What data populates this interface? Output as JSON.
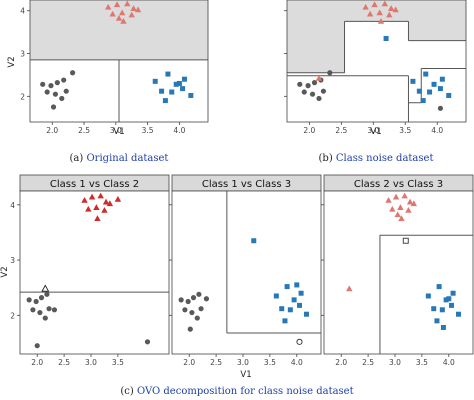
{
  "captions": {
    "a": {
      "prefix": "(a) ",
      "link": "Original dataset"
    },
    "b": {
      "prefix": "(b) ",
      "link": "Class noise dataset"
    },
    "c": {
      "prefix": "(c) ",
      "link": "OVO decomposition for class noise dataset"
    }
  },
  "colors": {
    "class1": "#595959",
    "class2": "#e0776f",
    "class2_strong": "#d02a2a",
    "class3": "#2878b5",
    "region_fill": "#dcdcdc",
    "strip_fill": "#d9d9d9"
  },
  "chart_data": [
    {
      "id": "a",
      "type": "scatter",
      "xlabel": "V1",
      "ylabel": "V2",
      "xlim": [
        1.65,
        4.45
      ],
      "ylim": [
        1.4,
        4.25
      ],
      "xticks": [
        2.0,
        2.5,
        3.0,
        3.5,
        4.0
      ],
      "xtick_labels": [
        "2.0",
        "2.5",
        "3.0",
        "3.5",
        "4.0"
      ],
      "yticks": [
        2,
        3,
        4
      ],
      "ytick_labels": [
        "2",
        "3",
        "4"
      ],
      "regions": [
        {
          "x0": 1.65,
          "x1": 4.45,
          "y0": 2.85,
          "y1": 4.25,
          "filled": true
        }
      ],
      "lines": [
        {
          "x0": 1.65,
          "x1": 4.45,
          "y0": 2.85,
          "y1": 2.85
        },
        {
          "x0": 3.05,
          "x1": 3.05,
          "y0": 1.4,
          "y1": 2.85
        }
      ],
      "series": [
        {
          "class": "class1",
          "shape": "circle",
          "x": [
            1.85,
            1.98,
            2.08,
            2.18,
            1.92,
            2.05,
            2.22,
            2.32,
            2.15,
            2.02
          ],
          "y": [
            2.28,
            2.25,
            2.32,
            2.38,
            2.1,
            2.05,
            2.12,
            2.55,
            1.95,
            1.75
          ]
        },
        {
          "class": "class2",
          "shape": "triangle",
          "x": [
            2.88,
            3.02,
            3.18,
            3.28,
            2.95,
            3.1,
            3.25,
            3.12,
            3.35,
            3.05
          ],
          "y": [
            4.08,
            4.14,
            4.16,
            4.05,
            3.92,
            3.95,
            3.9,
            3.75,
            4.02,
            3.82
          ]
        },
        {
          "class": "class3",
          "shape": "square",
          "x": [
            3.62,
            3.82,
            3.95,
            4.08,
            3.72,
            3.88,
            4.05,
            4.18,
            3.78,
            4.0
          ],
          "y": [
            2.35,
            2.52,
            2.28,
            2.4,
            2.12,
            2.1,
            2.18,
            2.02,
            1.9,
            2.3
          ]
        }
      ]
    },
    {
      "id": "b",
      "type": "scatter",
      "xlabel": "V1",
      "ylabel": "",
      "xlim": [
        1.65,
        4.45
      ],
      "ylim": [
        1.4,
        4.25
      ],
      "xticks": [
        2.0,
        2.5,
        3.0,
        3.5,
        4.0
      ],
      "xtick_labels": [
        "2.0",
        "2.5",
        "3.0",
        "3.5",
        "4.0"
      ],
      "yticks": [
        2,
        3,
        4
      ],
      "ytick_labels": [
        "",
        "",
        ""
      ],
      "regions": [
        {
          "x0": 1.65,
          "x1": 2.55,
          "y0": 2.55,
          "y1": 4.25,
          "filled": true
        },
        {
          "x0": 2.55,
          "x1": 3.55,
          "y0": 3.75,
          "y1": 4.25,
          "filled": true
        },
        {
          "x0": 3.55,
          "x1": 4.45,
          "y0": 3.3,
          "y1": 4.25,
          "filled": true
        }
      ],
      "lines": [
        {
          "x0": 1.65,
          "x1": 2.55,
          "y0": 2.55,
          "y1": 2.55
        },
        {
          "x0": 2.55,
          "x1": 2.55,
          "y0": 2.55,
          "y1": 3.75
        },
        {
          "x0": 2.55,
          "x1": 3.55,
          "y0": 3.75,
          "y1": 3.75
        },
        {
          "x0": 3.55,
          "x1": 3.55,
          "y0": 3.75,
          "y1": 3.3
        },
        {
          "x0": 3.55,
          "x1": 4.45,
          "y0": 3.3,
          "y1": 3.3
        },
        {
          "x0": 1.65,
          "x1": 3.55,
          "y0": 2.48,
          "y1": 2.48
        },
        {
          "x0": 3.55,
          "x1": 3.55,
          "y0": 2.48,
          "y1": 1.4
        },
        {
          "x0": 3.55,
          "x1": 3.75,
          "y0": 1.85,
          "y1": 1.85
        },
        {
          "x0": 3.75,
          "x1": 3.75,
          "y0": 1.85,
          "y1": 2.65
        },
        {
          "x0": 3.75,
          "x1": 4.45,
          "y0": 2.65,
          "y1": 2.65
        }
      ],
      "series": [
        {
          "class": "class1",
          "shape": "circle",
          "x": [
            1.85,
            1.98,
            2.08,
            2.18,
            1.92,
            2.05,
            2.22,
            2.32,
            2.15,
            4.05
          ],
          "y": [
            2.28,
            2.25,
            2.32,
            2.38,
            2.1,
            2.05,
            2.12,
            2.55,
            1.95,
            1.72
          ]
        },
        {
          "class": "class2",
          "shape": "triangle",
          "x": [
            2.88,
            3.02,
            3.18,
            3.28,
            2.95,
            3.1,
            3.25,
            3.12,
            3.35,
            2.15
          ],
          "y": [
            4.08,
            4.14,
            4.16,
            4.05,
            3.92,
            3.95,
            3.9,
            3.75,
            4.02,
            2.42
          ]
        },
        {
          "class": "class3",
          "shape": "square",
          "x": [
            3.62,
            3.82,
            3.95,
            4.08,
            3.72,
            3.88,
            4.05,
            4.18,
            3.78,
            3.2
          ],
          "y": [
            2.35,
            2.52,
            2.28,
            2.4,
            2.12,
            2.1,
            2.18,
            2.02,
            1.9,
            3.35
          ]
        }
      ]
    },
    {
      "id": "c1",
      "type": "scatter",
      "strip": "Class 1 vs Class 2",
      "xlabel": "",
      "ylabel": "V2",
      "xlim": [
        1.68,
        4.45
      ],
      "ylim": [
        1.3,
        4.25
      ],
      "xticks": [
        2.0,
        2.5,
        3.0,
        3.5
      ],
      "xtick_labels": [
        "2.0",
        "2.5",
        "3.0",
        "3.5"
      ],
      "yticks": [
        2,
        3,
        4
      ],
      "ytick_labels": [
        "2",
        "3",
        "4"
      ],
      "regions": [],
      "lines": [
        {
          "x0": 1.68,
          "x1": 4.45,
          "y0": 2.42,
          "y1": 2.42
        }
      ],
      "series": [
        {
          "class": "class1",
          "shape": "circle",
          "x": [
            1.85,
            1.98,
            2.08,
            2.18,
            1.92,
            2.05,
            2.22,
            2.32,
            2.15,
            4.05,
            2.0
          ],
          "y": [
            2.28,
            2.25,
            2.32,
            2.38,
            2.1,
            2.05,
            2.12,
            2.1,
            1.95,
            1.52,
            1.45
          ]
        },
        {
          "class": "class2_strong",
          "shape": "triangle",
          "x": [
            2.88,
            3.02,
            3.18,
            3.28,
            2.95,
            3.1,
            3.25,
            3.12,
            3.35,
            3.5
          ],
          "y": [
            4.08,
            4.14,
            4.16,
            4.05,
            3.92,
            3.95,
            3.9,
            3.75,
            4.02,
            4.1
          ]
        },
        {
          "class": "class2",
          "shape": "triangle-open",
          "x": [
            2.15
          ],
          "y": [
            2.48
          ]
        }
      ]
    },
    {
      "id": "c2",
      "type": "scatter",
      "strip": "Class 1 vs Class 3",
      "xlabel": "V1",
      "ylabel": "",
      "xlim": [
        1.68,
        4.45
      ],
      "ylim": [
        1.3,
        4.25
      ],
      "xticks": [
        2.0,
        2.5,
        3.0,
        3.5,
        4.0
      ],
      "xtick_labels": [
        "2.0",
        "2.5",
        "3.0",
        "3.5",
        "4.0"
      ],
      "yticks": [
        2,
        3,
        4
      ],
      "ytick_labels": [
        "",
        "",
        ""
      ],
      "regions": [],
      "lines": [
        {
          "x0": 2.7,
          "x1": 2.7,
          "y0": 4.25,
          "y1": 1.68
        },
        {
          "x0": 2.7,
          "x1": 4.45,
          "y0": 1.68,
          "y1": 1.68
        }
      ],
      "series": [
        {
          "class": "class1",
          "shape": "circle",
          "x": [
            1.85,
            1.98,
            2.08,
            2.18,
            1.92,
            2.05,
            2.22,
            2.32,
            2.15,
            2.02
          ],
          "y": [
            2.28,
            2.25,
            2.32,
            2.38,
            2.1,
            2.05,
            2.12,
            2.3,
            1.95,
            1.75
          ]
        },
        {
          "class": "class3",
          "shape": "square",
          "x": [
            3.62,
            3.82,
            3.95,
            4.08,
            3.72,
            3.88,
            4.05,
            4.18,
            3.78,
            4.0,
            3.2
          ],
          "y": [
            2.35,
            2.52,
            2.28,
            2.4,
            2.12,
            2.1,
            2.18,
            2.02,
            1.9,
            2.55,
            3.35
          ]
        },
        {
          "class": "class1",
          "shape": "circle-open",
          "x": [
            4.05
          ],
          "y": [
            1.52
          ]
        }
      ]
    },
    {
      "id": "c3",
      "type": "scatter",
      "strip": "Class 2 vs Class 3",
      "xlabel": "",
      "ylabel": "",
      "xlim": [
        1.68,
        4.45
      ],
      "ylim": [
        1.3,
        4.25
      ],
      "xticks": [
        2.0,
        2.5,
        3.0,
        3.5,
        4.0
      ],
      "xtick_labels": [
        "2.0",
        "2.5",
        "3.0",
        "3.5",
        "4.0"
      ],
      "yticks": [
        2,
        3,
        4
      ],
      "ytick_labels": [
        "",
        "",
        ""
      ],
      "regions": [],
      "lines": [
        {
          "x0": 2.72,
          "x1": 2.72,
          "y0": 1.3,
          "y1": 3.45
        },
        {
          "x0": 2.72,
          "x1": 4.45,
          "y0": 3.45,
          "y1": 3.45
        }
      ],
      "series": [
        {
          "class": "class2",
          "shape": "triangle",
          "x": [
            2.88,
            3.02,
            3.18,
            3.28,
            2.95,
            3.1,
            3.25,
            3.12,
            3.35,
            3.05,
            2.15
          ],
          "y": [
            4.08,
            4.14,
            4.16,
            4.05,
            3.92,
            3.95,
            3.9,
            3.75,
            4.02,
            3.82,
            2.48
          ]
        },
        {
          "class": "class3",
          "shape": "square",
          "x": [
            3.62,
            3.82,
            3.95,
            4.08,
            3.72,
            3.88,
            4.05,
            4.18,
            3.78,
            4.0,
            3.9
          ],
          "y": [
            2.35,
            2.52,
            2.28,
            2.4,
            2.12,
            2.1,
            2.18,
            2.02,
            1.9,
            2.3,
            1.78
          ]
        },
        {
          "class": "class3",
          "shape": "square-open",
          "x": [
            3.2
          ],
          "y": [
            3.35
          ]
        }
      ]
    }
  ]
}
